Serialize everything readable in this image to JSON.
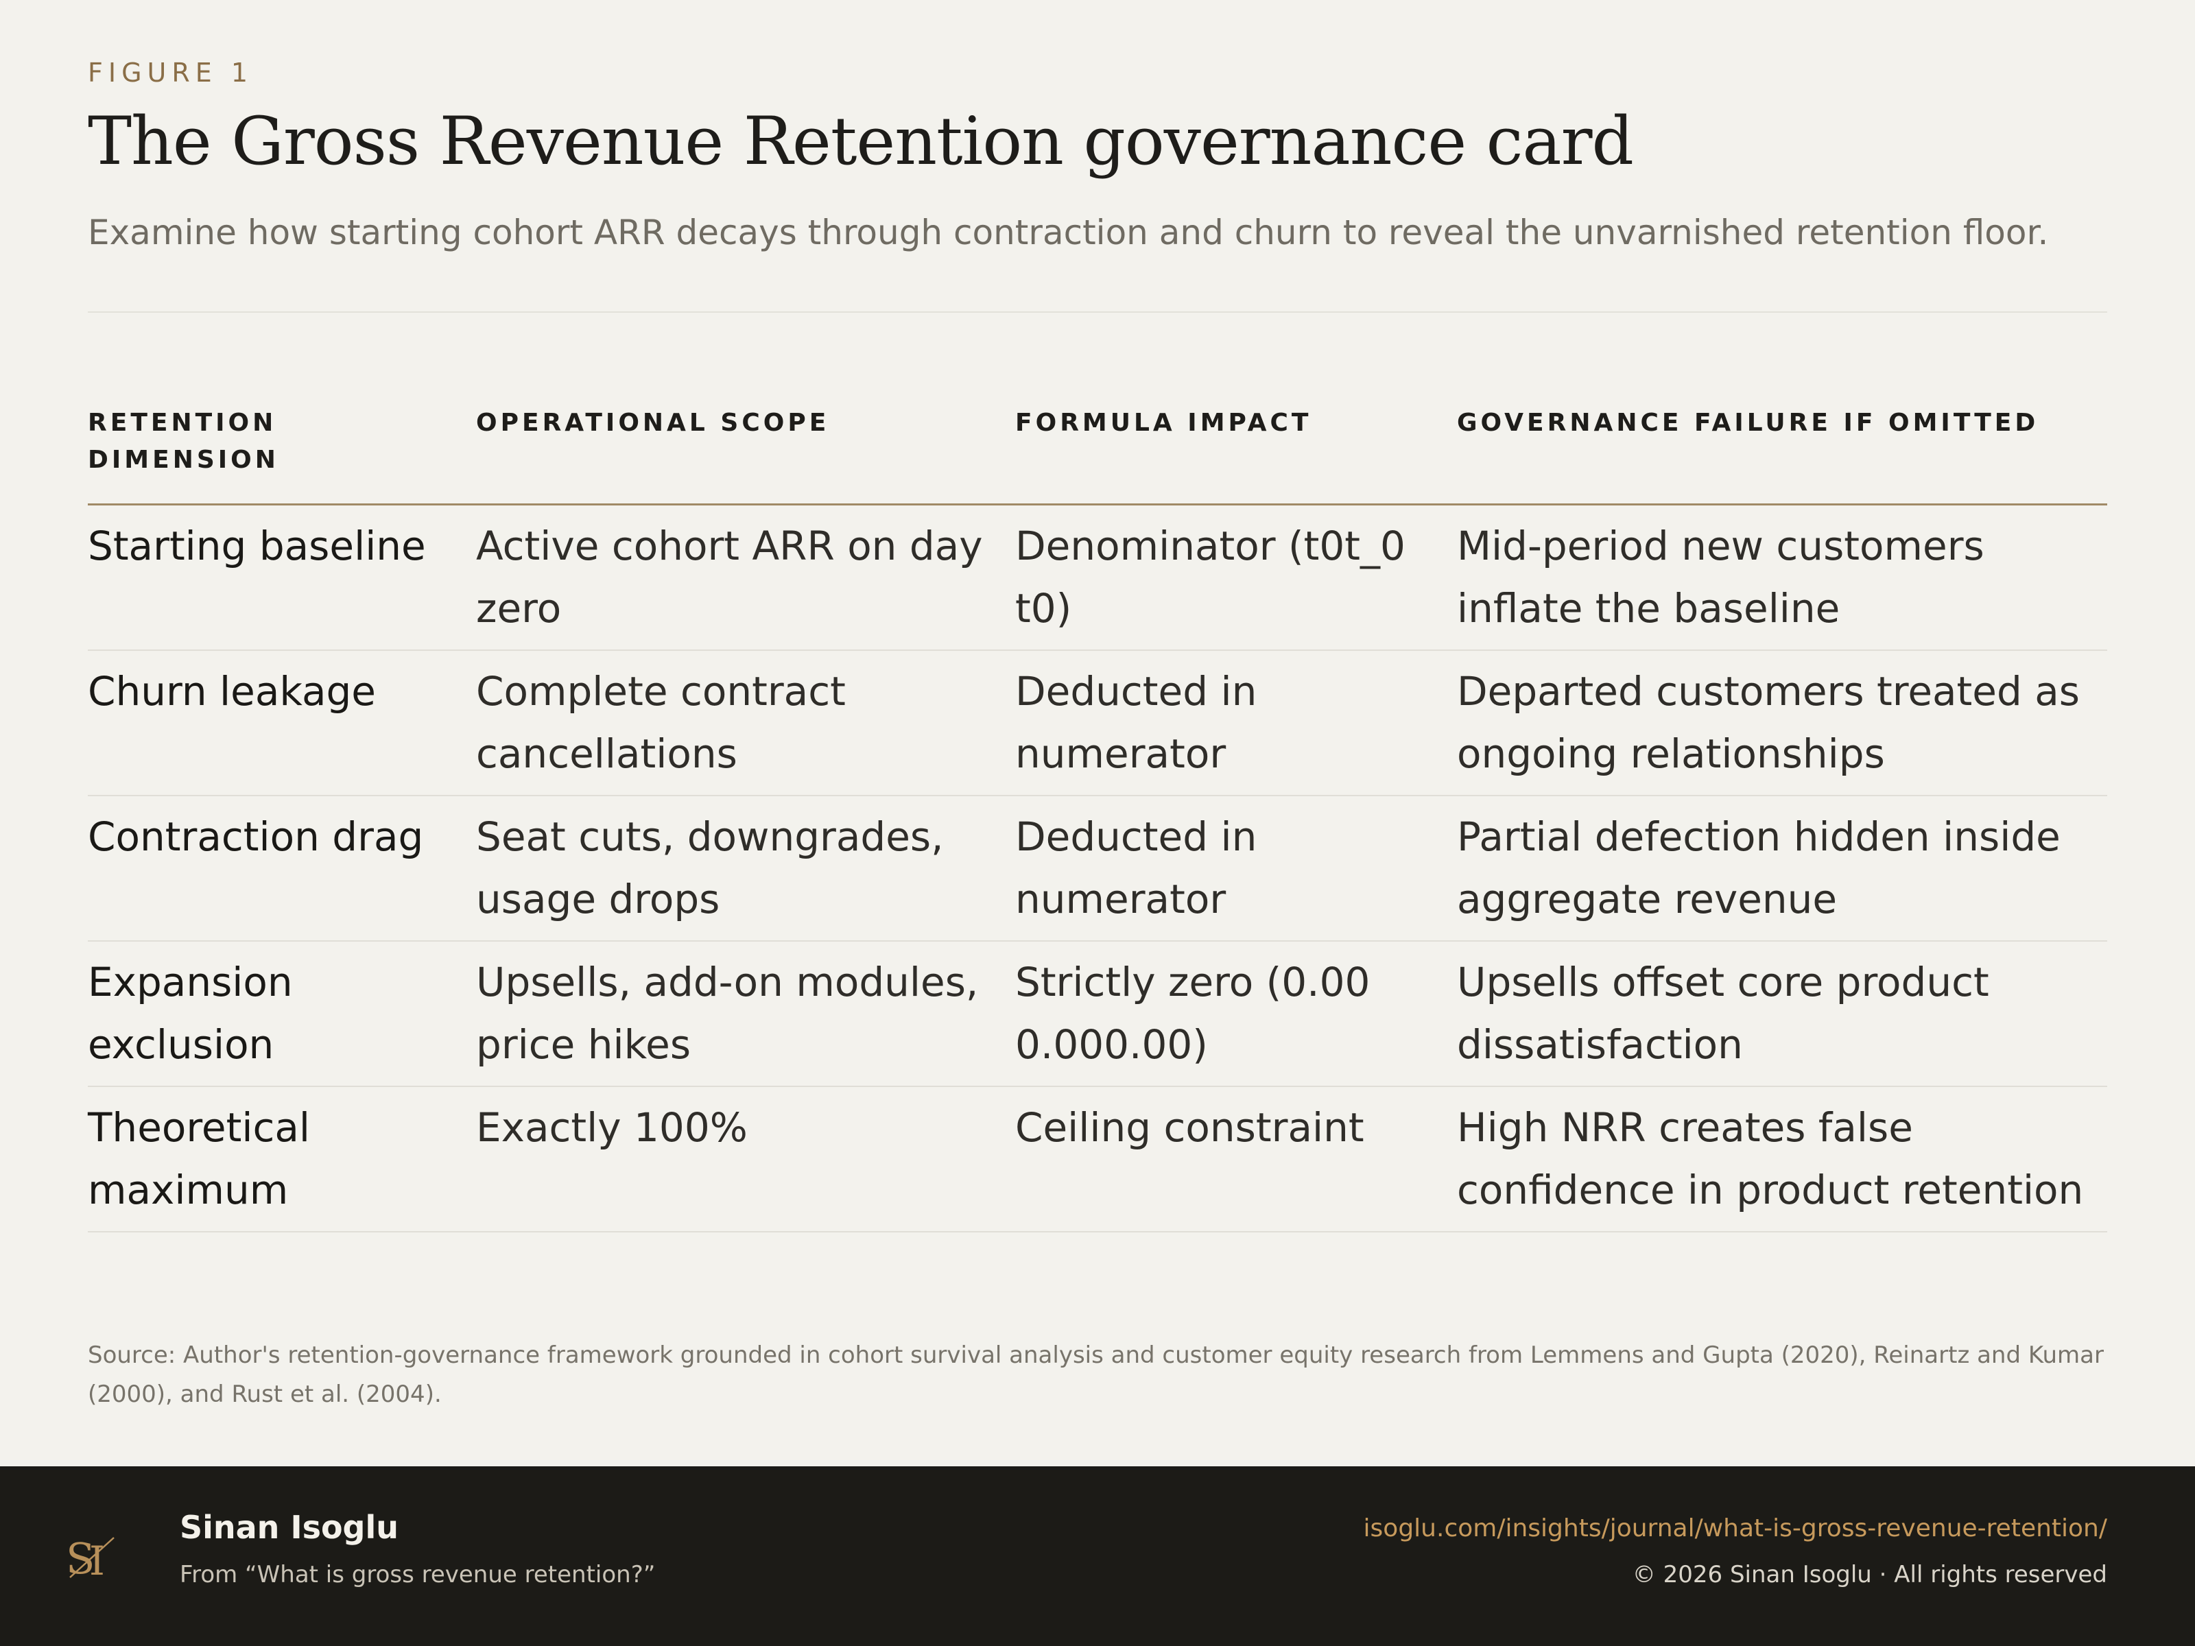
{
  "header": {
    "eyebrow": "FIGURE 1",
    "title": "The Gross Revenue Retention governance card",
    "subtitle": "Examine how starting cohort ARR decays through contraction and churn to reveal the unvarnished retention floor."
  },
  "table": {
    "columns": [
      "RETENTION DIMENSION",
      "OPERATIONAL SCOPE",
      "FORMULA IMPACT",
      "GOVERNANCE FAILURE IF OMITTED"
    ],
    "rows": [
      [
        "Starting baseline",
        "Active cohort ARR on day zero",
        "Denominator (t0t_0 t0)",
        "Mid-period new customers inflate the baseline"
      ],
      [
        "Churn leakage",
        "Complete contract cancellations",
        "Deducted in numerator",
        "Departed customers treated as ongoing relationships"
      ],
      [
        "Contraction drag",
        "Seat cuts, downgrades, usage drops",
        "Deducted in numerator",
        "Partial defection hidden inside aggregate revenue"
      ],
      [
        "Expansion exclusion",
        "Upsells, add-on modules, price hikes",
        "Strictly zero (0.00 0.000.00)",
        "Upsells offset core product dissatisfaction"
      ],
      [
        "Theoretical maximum",
        "Exactly 100%",
        "Ceiling constraint",
        "High NRR creates false confidence in product retention"
      ]
    ]
  },
  "source": "Source: Author's retention-governance framework grounded in cohort survival analysis and customer equity research from Lemmens and Gupta (2020), Reinartz and Kumar (2000), and Rust et al. (2004).",
  "footer": {
    "logo_icon": "si-monogram-logo",
    "author": "Sinan Isoglu",
    "from": "From “What is gross revenue retention?”",
    "url": "isoglu.com/insights/journal/what-is-gross-revenue-retention/",
    "copyright": "© 2026 Sinan Isoglu · All rights reserved"
  },
  "colors": {
    "background": "#f3f2ed",
    "accent": "#8a6e47",
    "footer_background": "#1c1b17",
    "link": "#c79a5c"
  }
}
